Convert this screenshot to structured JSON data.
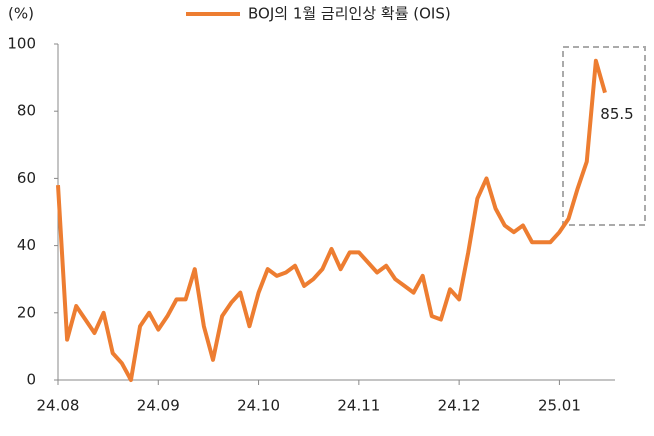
{
  "chart_data": {
    "type": "line",
    "y_label": "(%)",
    "categories": [
      "24.08",
      null,
      null,
      null,
      null,
      null,
      null,
      null,
      null,
      null,
      null,
      "24.09",
      null,
      null,
      null,
      null,
      null,
      null,
      null,
      null,
      null,
      null,
      "24.10",
      null,
      null,
      null,
      null,
      null,
      null,
      null,
      null,
      null,
      null,
      "24.11",
      null,
      null,
      null,
      null,
      null,
      null,
      null,
      null,
      null,
      null,
      "24.12",
      null,
      null,
      null,
      null,
      null,
      null,
      null,
      null,
      null,
      null,
      "25.01",
      null,
      null,
      null,
      null,
      null
    ],
    "series": [
      {
        "name": "BOJ의 1월 금리인상 확률 (OIS)",
        "color": "#ed7d31",
        "values": [
          58,
          12,
          22,
          18,
          14,
          20,
          8,
          5,
          0,
          16,
          20,
          15,
          19,
          24,
          24,
          33,
          16,
          6,
          19,
          23,
          26,
          16,
          26,
          33,
          31,
          32,
          34,
          28,
          30,
          33,
          39,
          33,
          38,
          38,
          35,
          32,
          34,
          30,
          28,
          26,
          31,
          19,
          18,
          27,
          24,
          38,
          54,
          60,
          51,
          46,
          44,
          46,
          41,
          41,
          41,
          44,
          48,
          57,
          65,
          95,
          85.5
        ]
      }
    ],
    "ylim": [
      0,
      100
    ],
    "yticks": [
      0,
      20,
      40,
      60,
      80,
      100
    ],
    "grid": false
  }
}
